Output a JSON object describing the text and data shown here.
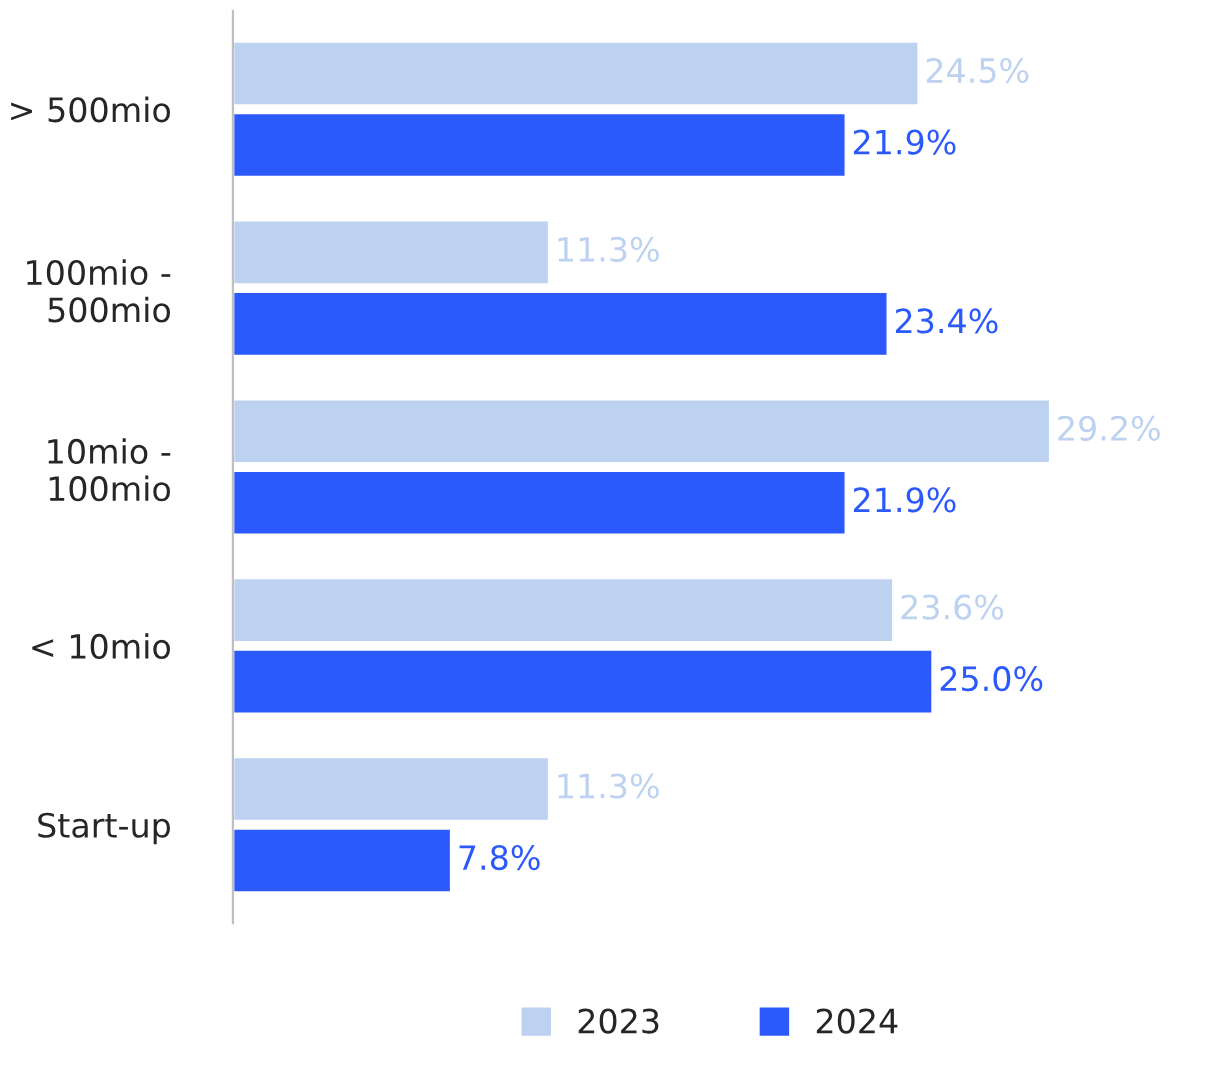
{
  "chart_data": {
    "type": "bar",
    "orientation": "horizontal",
    "categories": [
      "> 500mio",
      "100mio -\n500mio",
      "10mio -\n100mio",
      "< 10mio",
      "Start-up"
    ],
    "series": [
      {
        "name": "2023",
        "color": "#bdd1f0",
        "values": [
          24.5,
          11.3,
          29.2,
          23.6,
          11.3
        ],
        "value_labels": [
          "24.5%",
          "11.3%",
          "29.2%",
          "23.6%",
          "11.3%"
        ]
      },
      {
        "name": "2024",
        "color": "#2c59fb",
        "values": [
          21.9,
          23.4,
          21.9,
          25.0,
          7.8
        ],
        "value_labels": [
          "21.9%",
          "23.4%",
          "21.9%",
          "25.0%",
          "7.8%"
        ]
      }
    ],
    "legend": "bottom",
    "grid": false,
    "tick_labels": "y"
  }
}
